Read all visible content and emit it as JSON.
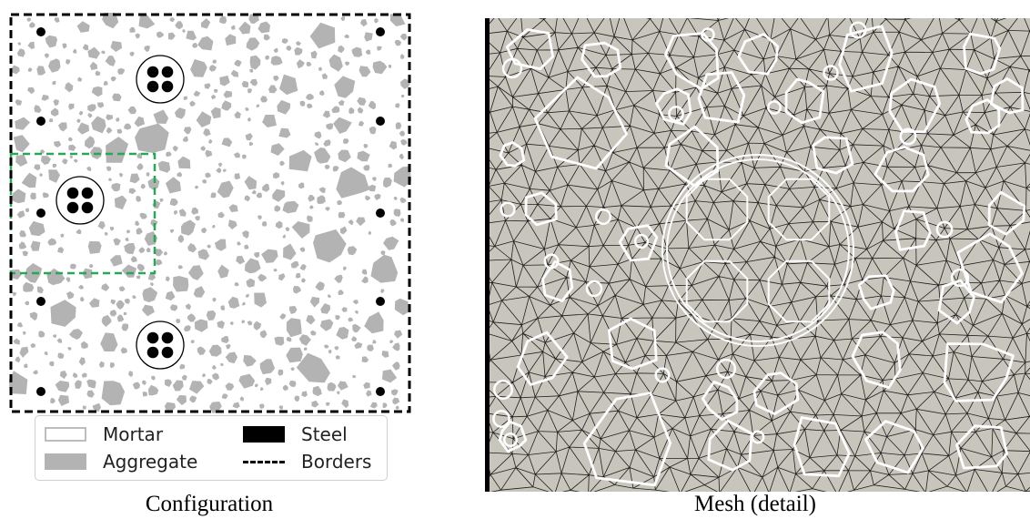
{
  "captions": {
    "left": "Configuration",
    "right": "Mesh (detail)"
  },
  "legend": {
    "mortar": "Mortar",
    "aggregate": "Aggregate",
    "steel": "Steel",
    "borders": "Borders"
  },
  "colors": {
    "aggregate": "#b3b3b3",
    "mortar": "#ffffff",
    "steel": "#000000",
    "border": "#000000",
    "detail_box": "#22aa55",
    "mesh_bg": "#c8c5bc",
    "mesh_lines": "#000000",
    "mesh_outlines": "#ffffff"
  },
  "icons": [
    "mortar-swatch-icon",
    "aggregate-swatch-icon",
    "steel-swatch-icon",
    "borders-swatch-icon"
  ]
}
